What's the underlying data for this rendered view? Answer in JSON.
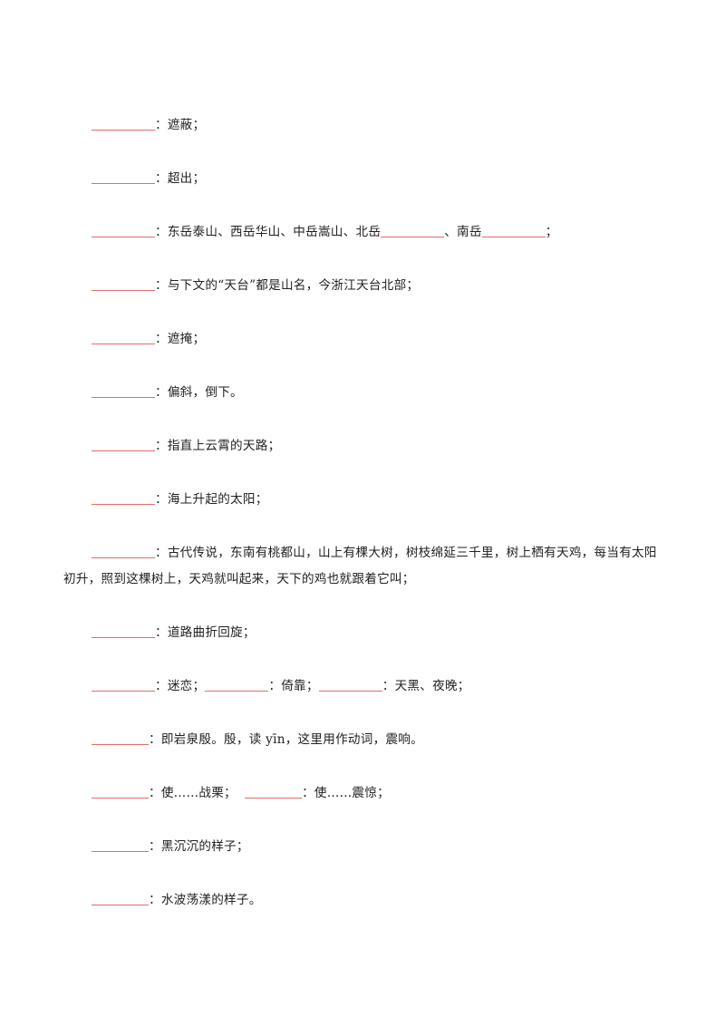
{
  "accent_color": "#e46c6c",
  "items": [
    {
      "segments": [
        {
          "blank": true
        },
        {
          "text": "：遮蔽；"
        }
      ]
    },
    {
      "segments": [
        {
          "blank": true
        },
        {
          "text": "：超出；"
        }
      ]
    },
    {
      "segments": [
        {
          "blank": true
        },
        {
          "text": "：东岳泰山、西岳华山、中岳嵩山、北岳"
        },
        {
          "blank": true
        },
        {
          "text": "、南岳"
        },
        {
          "blank": true
        },
        {
          "text": "；"
        }
      ]
    },
    {
      "segments": [
        {
          "blank": true
        },
        {
          "text": "：与下文的“天台”都是山名，今浙江天台北部；"
        }
      ]
    },
    {
      "segments": [
        {
          "blank": true
        },
        {
          "text": "：遮掩；"
        }
      ]
    },
    {
      "segments": [
        {
          "blank": true
        },
        {
          "text": "：偏斜，倒下。"
        }
      ]
    },
    {
      "segments": [
        {
          "blank": true
        },
        {
          "text": "：指直上云霄的天路；"
        }
      ]
    },
    {
      "segments": [
        {
          "blank": true
        },
        {
          "text": "：海上升起的太阳；"
        }
      ]
    },
    {
      "segments": [
        {
          "blank": true
        },
        {
          "text": "：古代传说，东南有桃都山，山上有棵大树，树枝绵延三千里，树上栖有天鸡，每当有太阳初升，照到这棵树上，天鸡就叫起来，天下的鸡也就跟着它叫；"
        }
      ]
    },
    {
      "segments": [
        {
          "blank": true
        },
        {
          "text": "：道路曲折回旋；"
        }
      ]
    },
    {
      "segments": [
        {
          "blank": true
        },
        {
          "text": "：迷恋；"
        },
        {
          "blank": true
        },
        {
          "text": "：倚靠；"
        },
        {
          "blank": true
        },
        {
          "text": "：天黑、夜晚；"
        }
      ]
    },
    {
      "segments": [
        {
          "blank": true,
          "short": true
        },
        {
          "text": "：即岩泉殷。殷，读 yīn，这里用作动词，震响。"
        }
      ]
    },
    {
      "segments": [
        {
          "blank": true,
          "short": true
        },
        {
          "text": "：使……战栗；  "
        },
        {
          "blank": true,
          "short": true
        },
        {
          "text": "：使……震惊；"
        }
      ]
    },
    {
      "segments": [
        {
          "blank": true,
          "short": true
        },
        {
          "text": "：黑沉沉的样子；"
        }
      ]
    },
    {
      "segments": [
        {
          "blank": true,
          "short": true
        },
        {
          "text": "：水波荡漾的样子。"
        }
      ]
    }
  ]
}
